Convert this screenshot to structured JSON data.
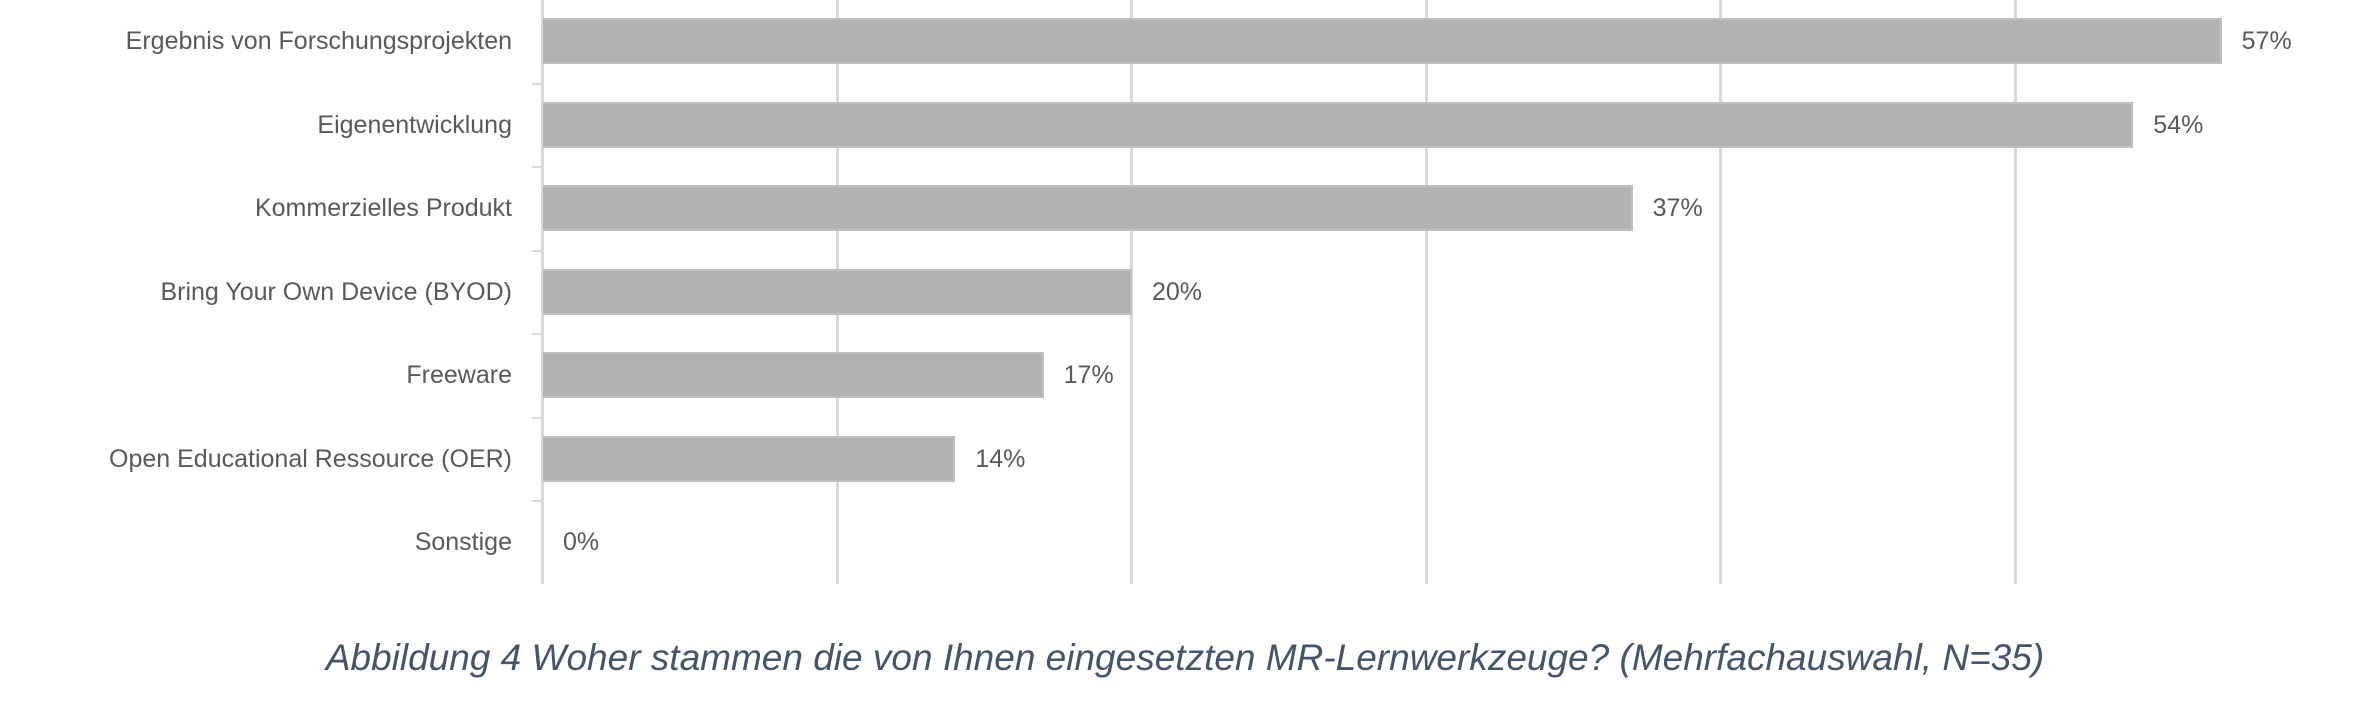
{
  "caption": "Abbildung 4 Woher stammen die von Ihnen eingesetzten MR-Lernwerkzeuge? (Mehrfachauswahl, N=35)",
  "colors": {
    "bar": "#b2b2b2",
    "bar_border": "#bfbfbf",
    "gridline": "#d9d9d9",
    "label_text": "#595959",
    "caption_text": "#44546a"
  },
  "chart_data": {
    "type": "bar",
    "orientation": "horizontal",
    "title": "",
    "caption": "Abbildung 4 Woher stammen die von Ihnen eingesetzten MR-Lernwerkzeuge? (Mehrfachauswahl, N=35)",
    "xlabel": "",
    "ylabel": "",
    "categories": [
      "Ergebnis von Forschungsprojekten",
      "Eigenentwicklung",
      "Kommerzielles Produkt",
      "Bring Your Own Device (BYOD)",
      "Freeware",
      "Open Educational Ressource (OER)",
      "Sonstige"
    ],
    "values": [
      57,
      54,
      37,
      20,
      17,
      14,
      0
    ],
    "value_labels": [
      "57%",
      "54%",
      "37%",
      "20%",
      "17%",
      "14%",
      "0%"
    ],
    "unit": "%",
    "xlim": [
      0,
      57
    ],
    "gridlines_x": [
      10,
      20,
      30,
      40,
      50
    ],
    "grid": true,
    "x_tick_labels_visible": false,
    "legend": null
  }
}
